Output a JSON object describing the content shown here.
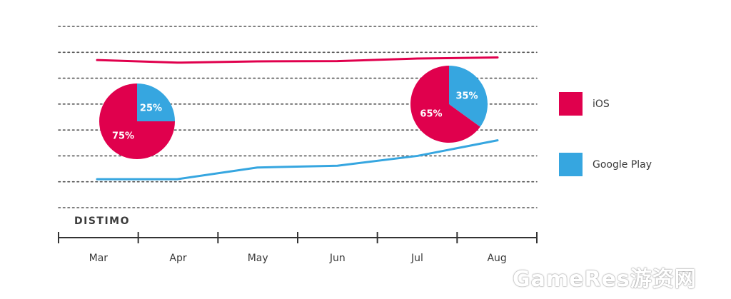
{
  "chart_data": {
    "type": "line",
    "categories": [
      "Mar",
      "Apr",
      "May",
      "Jun",
      "Jul",
      "Aug"
    ],
    "ylim": [
      0,
      7
    ],
    "grid": true,
    "legend_position": "right",
    "series": [
      {
        "name": "iOS",
        "color": "#e0004d",
        "values": [
          5.7,
          5.6,
          5.65,
          5.66,
          5.76,
          5.8
        ]
      },
      {
        "name": "Google Play",
        "color": "#36a6e0",
        "values": [
          1.1,
          1.1,
          1.55,
          1.62,
          2.0,
          2.6
        ]
      }
    ],
    "pies": [
      {
        "month": "Mar",
        "slices": [
          {
            "label": "75%",
            "value": 75,
            "color": "#e0004d"
          },
          {
            "label": "25%",
            "value": 25,
            "color": "#36a6e0"
          }
        ]
      },
      {
        "month": "Aug",
        "slices": [
          {
            "label": "65%",
            "value": 65,
            "color": "#e0004d"
          },
          {
            "label": "35%",
            "value": 35,
            "color": "#36a6e0"
          }
        ]
      }
    ]
  },
  "legend": [
    {
      "label": "iOS",
      "color": "#e0004d"
    },
    {
      "label": "Google Play",
      "color": "#36a6e0"
    }
  ],
  "logo": "DISTIMO",
  "watermark": "GameRes游资网"
}
